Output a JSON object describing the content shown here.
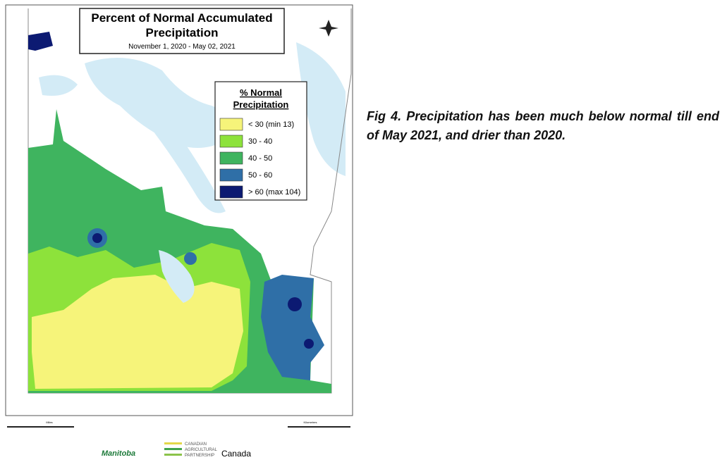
{
  "map": {
    "title_lines": [
      "Percent of Normal Accumulated",
      "Precipitation"
    ],
    "subtitle": "November 1, 2020 - May 02, 2021",
    "legend": {
      "title_lines": [
        "% Normal",
        "Precipitation"
      ],
      "items": [
        {
          "label": "< 30 (min 13)",
          "color": "#f6f47a"
        },
        {
          "label": "30 - 40",
          "color": "#8de23b"
        },
        {
          "label": "40 - 50",
          "color": "#3fb45f"
        },
        {
          "label": "50 - 60",
          "color": "#2f6fa7"
        },
        {
          "label": "> 60 (max 104)",
          "color": "#0c1a72"
        }
      ]
    },
    "scale_units": [
      "Miles",
      "Kilometres"
    ],
    "logos": [
      "Manitoba",
      "CANADIAN",
      "AGRICULTURAL",
      "PARTNERSHIP",
      "Canada"
    ]
  },
  "caption": "Fig 4. Precipitation has been much below normal till end of May 2021, and drier than 2020."
}
